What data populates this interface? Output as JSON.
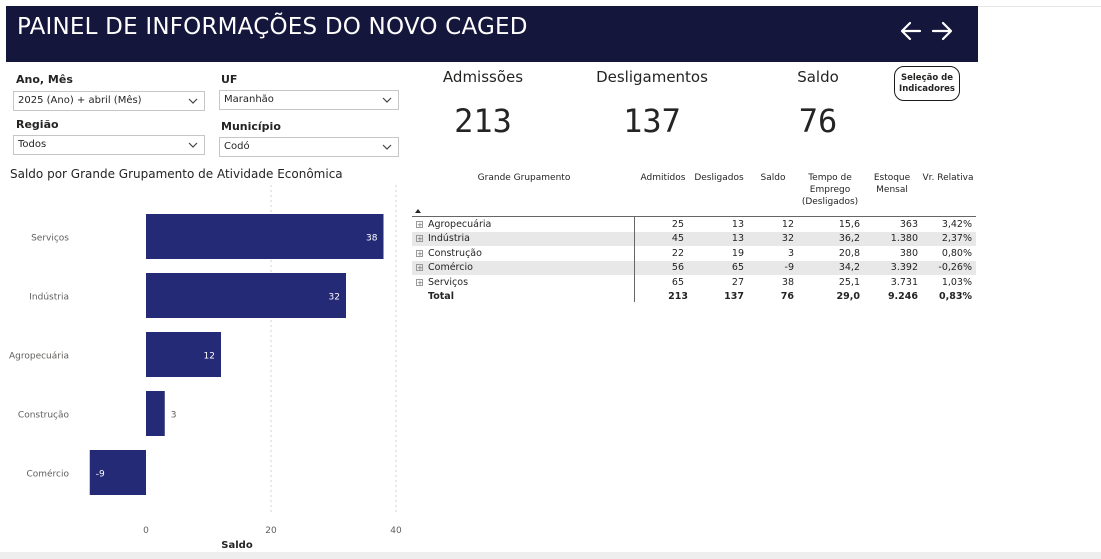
{
  "header": {
    "title": "PAINEL DE INFORMAÇÕES DO NOVO CAGED"
  },
  "filters": {
    "ano_mes": {
      "label": "Ano, Mês",
      "value": "2025 (Ano) + abril (Mês)"
    },
    "uf": {
      "label": "UF",
      "value": "Maranhão"
    },
    "regiao": {
      "label": "Região",
      "value": "Todos"
    },
    "municipio": {
      "label": "Município",
      "value": "Codó"
    }
  },
  "kpis": {
    "admissoes": {
      "label": "Admissões",
      "value": "213"
    },
    "desligamentos": {
      "label": "Desligamentos",
      "value": "137"
    },
    "saldo": {
      "label": "Saldo",
      "value": "76"
    }
  },
  "selection_button": {
    "label": "Seleção de Indicadores"
  },
  "chart_data": {
    "type": "bar",
    "orientation": "horizontal",
    "title": "Saldo por Grande Grupamento de Atividade Econômica",
    "categories": [
      "Serviços",
      "Indústria",
      "Agropecuária",
      "Construção",
      "Comércio"
    ],
    "values": [
      38,
      32,
      12,
      3,
      -9
    ],
    "xlabel": "Saldo",
    "ylabel": "",
    "xlim": [
      -9,
      40
    ],
    "xticks": [
      0,
      20,
      40
    ],
    "bar_color": "#252a77"
  },
  "matrix": {
    "headers": [
      "Grande Grupamento",
      "Admitidos",
      "Desligados",
      "Saldo",
      "Tempo de Emprego (Desligados)",
      "Estoque Mensal",
      "Vr. Relativa"
    ],
    "rows": [
      [
        "Agropecuária",
        "25",
        "13",
        "12",
        "15,6",
        "363",
        "3,42%"
      ],
      [
        "Indústria",
        "45",
        "13",
        "32",
        "36,2",
        "1.380",
        "2,37%"
      ],
      [
        "Construção",
        "22",
        "19",
        "3",
        "20,8",
        "380",
        "0,80%"
      ],
      [
        "Comércio",
        "56",
        "65",
        "-9",
        "34,2",
        "3.392",
        "-0,26%"
      ],
      [
        "Serviços",
        "65",
        "27",
        "38",
        "25,1",
        "3.731",
        "1,03%"
      ]
    ],
    "total": [
      "Total",
      "213",
      "137",
      "76",
      "29,0",
      "9.246",
      "0,83%"
    ]
  },
  "colors": {
    "header_bg": "#14163c",
    "bar": "#252a77"
  }
}
